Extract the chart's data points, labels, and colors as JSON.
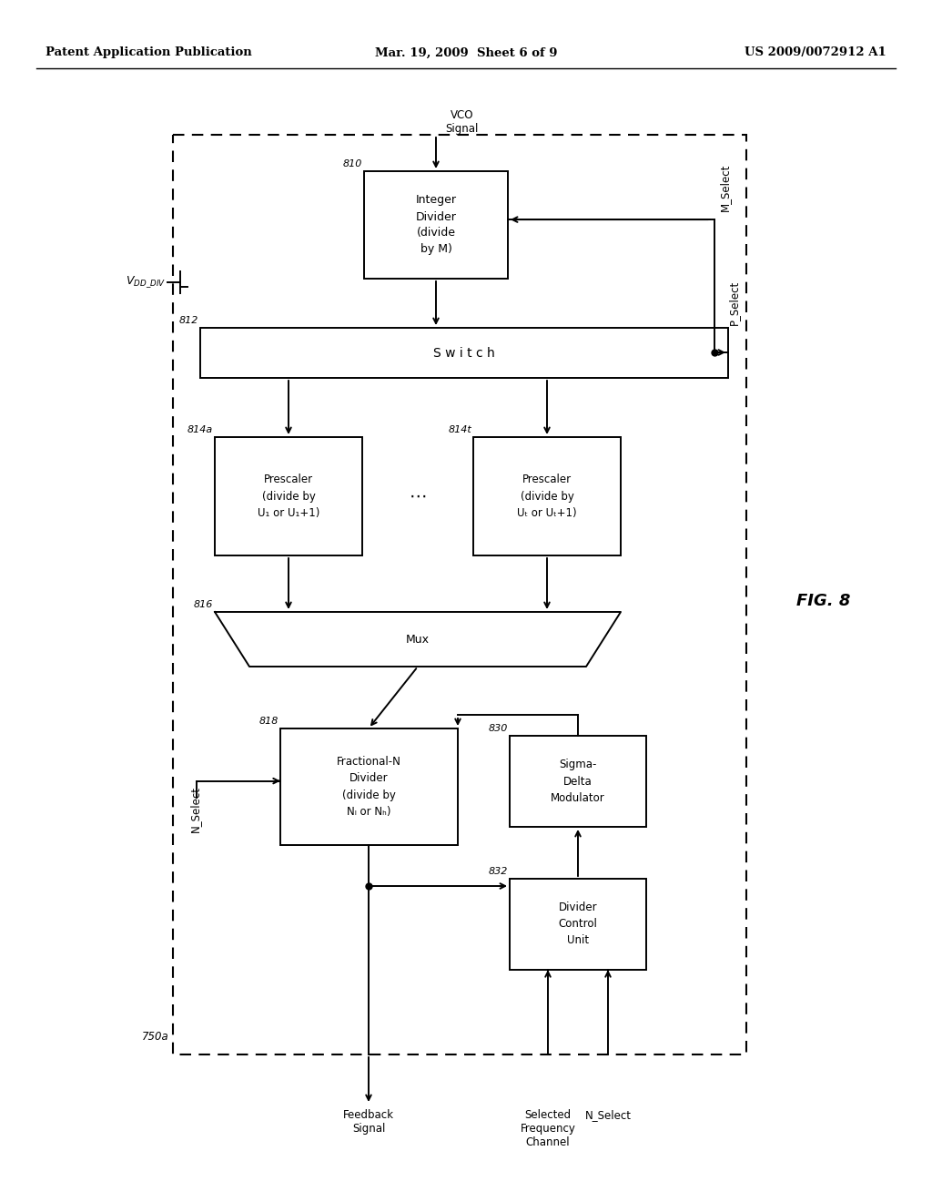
{
  "bg": "#ffffff",
  "header_left": "Patent Application Publication",
  "header_mid": "Mar. 19, 2009  Sheet 6 of 9",
  "header_right": "US 2009/0072912 A1",
  "fig_label": "FIG. 8",
  "outer_label": "750a",
  "vco_label": "VCO\nSignal",
  "m_select": "M_Select",
  "p_select": "P_Select",
  "n_select": "N_Select",
  "feedback": "Feedback\nSignal",
  "sel_freq": "Selected\nFrequency\nChannel",
  "n_select_bot": "N_Select",
  "id_label": "Integer\nDivider\n(divide\nby M)",
  "id_num": "810",
  "sw_label": "S w i t c h",
  "sw_num": "812",
  "pa_label": "Prescaler\n(divide by\nU₁ or U₁+1)",
  "pa_num": "814a",
  "pt_label": "Prescaler\n(divide by\nUₜ or Uₜ+1)",
  "pt_num": "814t",
  "mux_label": "Mux",
  "mux_num": "816",
  "fn_label": "Fractional-N\nDivider\n(divide by\nNₗ or Nₕ)",
  "fn_num": "818",
  "sd_label": "Sigma-\nDelta\nModulator",
  "sd_num": "830",
  "dcu_label": "Divider\nControl\nUnit",
  "dcu_num": "832",
  "vdd_label": "V_{DD\\_DIV}"
}
